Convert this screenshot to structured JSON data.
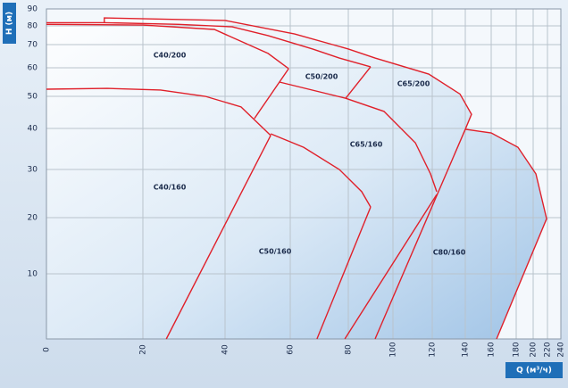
{
  "chart_data": {
    "type": "region",
    "x_label": "Q (м³/ч)",
    "y_label": "H (м)",
    "xlim": [
      0,
      240
    ],
    "ylim": [
      0,
      90
    ],
    "xticks": [
      0,
      20,
      40,
      60,
      80,
      100,
      120,
      140,
      160,
      180,
      200,
      220,
      240
    ],
    "yticks": [
      10,
      20,
      30,
      40,
      50,
      60,
      70,
      80,
      90
    ],
    "grid": true,
    "color": "#e0202a",
    "region_labels": [
      "C40/200",
      "C50/200",
      "C65/200",
      "C40/160",
      "C65/160",
      "C50/160",
      "C80/160"
    ],
    "curves": [
      {
        "x": [
          0,
          20,
          37.4,
          53.2,
          59.5
        ],
        "y": [
          80.9,
          80.5,
          78.1,
          66.2,
          59.7
        ]
      },
      {
        "x": [
          59.5,
          49.0
        ],
        "y": [
          59.7,
          43.1
        ]
      },
      {
        "x": [
          0,
          12,
          28.7,
          42.2,
          53.2,
          67.7,
          76.9,
          90
        ],
        "y": [
          81.9,
          81.9,
          80.9,
          79.5,
          74.8,
          68.1,
          64.2,
          60.4
        ]
      },
      {
        "x": [
          90,
          79.1
        ],
        "y": [
          60.4,
          49.4
        ]
      },
      {
        "x": [
          12,
          12,
          40,
          61.5,
          80,
          92,
          118.2,
          136.8,
          144.8,
          140
        ],
        "y": [
          81.9,
          84.7,
          83.2,
          75.7,
          68.1,
          64.2,
          57.8,
          50.8,
          44.4,
          39.8
        ]
      },
      {
        "x": [
          140,
          92
        ],
        "y": [
          39.8,
          0
        ]
      },
      {
        "x": [
          140,
          160,
          182.1,
          203.8,
          218.8,
          164.3
        ],
        "y": [
          39.8,
          38.9,
          35.4,
          29.1,
          19.8,
          0
        ]
      },
      {
        "x": [
          0,
          12.6,
          24.3,
          35.2,
          44.9,
          54
        ],
        "y": [
          52.5,
          52.8,
          52.2,
          50,
          46.7,
          38.3
        ]
      },
      {
        "x": [
          54,
          25.7
        ],
        "y": [
          38.3,
          0
        ]
      },
      {
        "x": [
          54,
          64.6,
          76.9,
          86,
          90
        ],
        "y": [
          38.7,
          35.4,
          30,
          25.4,
          22.2
        ]
      },
      {
        "x": [
          90,
          69.2
        ],
        "y": [
          22.2,
          0
        ]
      },
      {
        "x": [
          56.7,
          79.1,
          96,
          111.4,
          119.1,
          122.7
        ],
        "y": [
          55,
          49.4,
          45.3,
          36.5,
          29.1,
          25.4
        ]
      },
      {
        "x": [
          122.7,
          78.8
        ],
        "y": [
          24.8,
          0
        ]
      }
    ]
  }
}
